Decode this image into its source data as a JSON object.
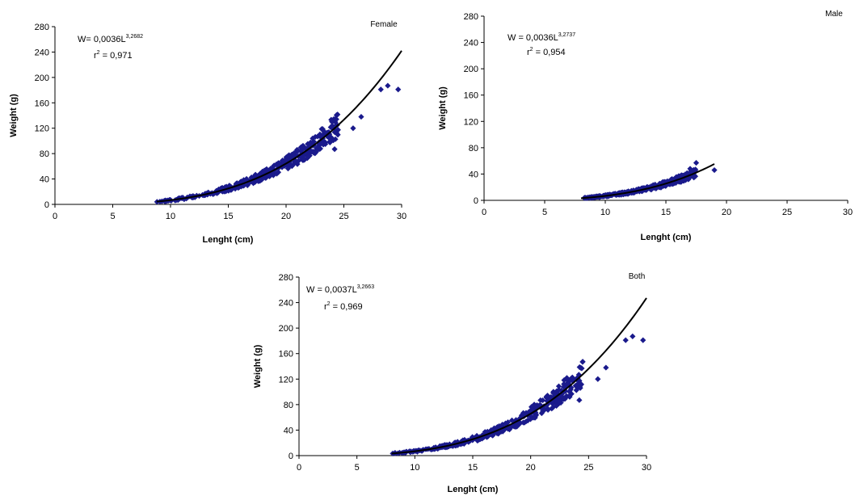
{
  "colors": {
    "points": "#1a1a8c",
    "curve": "#000000",
    "axis": "#000000"
  },
  "chart_data": [
    {
      "type": "scatter",
      "title": "Female",
      "xlabel": "Lenght (cm)",
      "ylabel": "Weight (g)",
      "xlim": [
        0,
        30
      ],
      "ylim": [
        0,
        280
      ],
      "xticks": [
        0,
        5,
        10,
        15,
        20,
        25,
        30
      ],
      "yticks": [
        0,
        40,
        80,
        120,
        160,
        200,
        240,
        280
      ],
      "grid": false,
      "equation": {
        "prefix": "W= 0,0036L",
        "exponent": "3,2682",
        "r2_label": "r",
        "r2_exp": "2",
        "r2_value": " = 0,971"
      },
      "fit": {
        "a": 0.0036,
        "b": 3.2682,
        "x_range": [
          8.8,
          30
        ]
      },
      "points_x_range": [
        8.8,
        24.5
      ],
      "outliers": [
        [
          25.8,
          120
        ],
        [
          26.5,
          138
        ],
        [
          28.2,
          181
        ],
        [
          28.8,
          187
        ],
        [
          29.7,
          181
        ],
        [
          24.2,
          87
        ],
        [
          23.4,
          95
        ],
        [
          21.5,
          73
        ]
      ]
    },
    {
      "type": "scatter",
      "title": "Male",
      "xlabel": "Lenght (cm)",
      "ylabel": "Weight (g)",
      "xlim": [
        0,
        30
      ],
      "ylim": [
        0,
        280
      ],
      "xticks": [
        0,
        5,
        10,
        15,
        20,
        25,
        30
      ],
      "yticks": [
        0,
        40,
        80,
        120,
        160,
        200,
        240,
        280
      ],
      "grid": false,
      "equation": {
        "prefix": "W = 0,0036L",
        "exponent": "3,2737",
        "r2_label": "r",
        "r2_exp": "2",
        "r2_value": " = 0,954"
      },
      "fit": {
        "a": 0.0036,
        "b": 3.2737,
        "x_range": [
          8.0,
          19.0
        ]
      },
      "points_x_range": [
        8.0,
        17.5
      ],
      "outliers": [
        [
          19.0,
          46
        ],
        [
          17.5,
          57
        ],
        [
          17.0,
          48
        ]
      ]
    },
    {
      "type": "scatter",
      "title": "Both",
      "xlabel": "Lenght (cm)",
      "ylabel": "Weight (g)",
      "xlim": [
        0,
        30
      ],
      "ylim": [
        0,
        280
      ],
      "xticks": [
        0,
        5,
        10,
        15,
        20,
        25,
        30
      ],
      "yticks": [
        0,
        40,
        80,
        120,
        160,
        200,
        240,
        280
      ],
      "grid": false,
      "equation": {
        "prefix": "W = 0,0037L",
        "exponent": "3,2663",
        "r2_label": "r",
        "r2_exp": "2",
        "r2_value": " = 0,969"
      },
      "fit": {
        "a": 0.0037,
        "b": 3.2663,
        "x_range": [
          8.0,
          30
        ]
      },
      "points_x_range": [
        8.0,
        24.5
      ],
      "outliers": [
        [
          25.8,
          120
        ],
        [
          26.5,
          138
        ],
        [
          28.2,
          181
        ],
        [
          28.8,
          187
        ],
        [
          29.7,
          181
        ],
        [
          24.2,
          87
        ],
        [
          23.4,
          95
        ],
        [
          21.5,
          73
        ]
      ]
    }
  ]
}
